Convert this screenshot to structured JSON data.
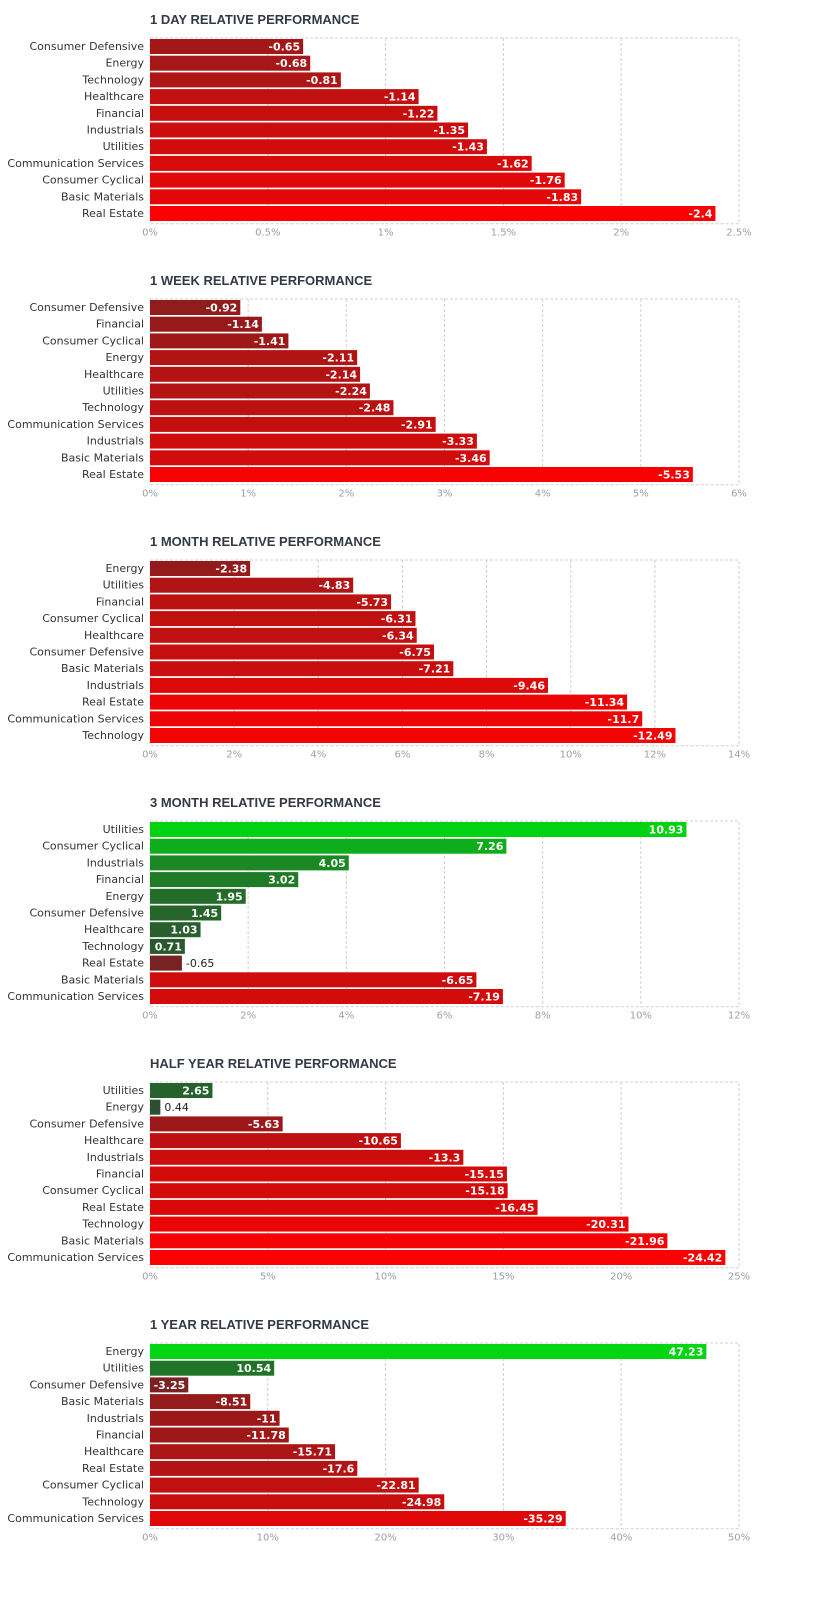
{
  "chart_data": [
    {
      "type": "bar",
      "orientation": "horizontal",
      "title": "1 DAY RELATIVE PERFORMANCE",
      "categories": [
        "Consumer Defensive",
        "Energy",
        "Technology",
        "Healthcare",
        "Financial",
        "Industrials",
        "Utilities",
        "Communication Services",
        "Consumer Cyclical",
        "Basic Materials",
        "Real Estate"
      ],
      "values": [
        -0.65,
        -0.68,
        -0.81,
        -1.14,
        -1.22,
        -1.35,
        -1.43,
        -1.62,
        -1.76,
        -1.83,
        -2.4
      ],
      "value_labels": [
        "-0.65",
        "-0.68",
        "-0.81",
        "-1.14",
        "-1.22",
        "-1.35",
        "-1.43",
        "-1.62",
        "-1.76",
        "-1.83",
        "-2.4"
      ],
      "xlim": [
        0,
        2.5
      ],
      "ticks": [
        0,
        0.5,
        1,
        1.5,
        2,
        2.5
      ],
      "tick_labels": [
        "0%",
        "0.5%",
        "1%",
        "1.5%",
        "2%",
        "2.5%"
      ],
      "grid": true
    },
    {
      "type": "bar",
      "orientation": "horizontal",
      "title": "1 WEEK RELATIVE PERFORMANCE",
      "categories": [
        "Consumer Defensive",
        "Financial",
        "Consumer Cyclical",
        "Energy",
        "Healthcare",
        "Utilities",
        "Technology",
        "Communication Services",
        "Industrials",
        "Basic Materials",
        "Real Estate"
      ],
      "values": [
        -0.92,
        -1.14,
        -1.41,
        -2.11,
        -2.14,
        -2.24,
        -2.48,
        -2.91,
        -3.33,
        -3.46,
        -5.53
      ],
      "value_labels": [
        "-0.92",
        "-1.14",
        "-1.41",
        "-2.11",
        "-2.14",
        "-2.24",
        "-2.48",
        "-2.91",
        "-3.33",
        "-3.46",
        "-5.53"
      ],
      "xlim": [
        0,
        6
      ],
      "ticks": [
        0,
        1,
        2,
        3,
        4,
        5,
        6
      ],
      "tick_labels": [
        "0%",
        "1%",
        "2%",
        "3%",
        "4%",
        "5%",
        "6%"
      ],
      "grid": true
    },
    {
      "type": "bar",
      "orientation": "horizontal",
      "title": "1 MONTH RELATIVE PERFORMANCE",
      "categories": [
        "Energy",
        "Utilities",
        "Financial",
        "Consumer Cyclical",
        "Healthcare",
        "Consumer Defensive",
        "Basic Materials",
        "Industrials",
        "Real Estate",
        "Communication Services",
        "Technology"
      ],
      "values": [
        -2.38,
        -4.83,
        -5.73,
        -6.31,
        -6.34,
        -6.75,
        -7.21,
        -9.46,
        -11.34,
        -11.7,
        -12.49
      ],
      "value_labels": [
        "-2.38",
        "-4.83",
        "-5.73",
        "-6.31",
        "-6.34",
        "-6.75",
        "-7.21",
        "-9.46",
        "-11.34",
        "-11.7",
        "-12.49"
      ],
      "xlim": [
        0,
        14
      ],
      "ticks": [
        0,
        2,
        4,
        6,
        8,
        10,
        12,
        14
      ],
      "tick_labels": [
        "0%",
        "2%",
        "4%",
        "6%",
        "8%",
        "10%",
        "12%",
        "14%"
      ],
      "grid": true
    },
    {
      "type": "bar",
      "orientation": "horizontal",
      "title": "3 MONTH RELATIVE PERFORMANCE",
      "categories": [
        "Utilities",
        "Consumer Cyclical",
        "Industrials",
        "Financial",
        "Energy",
        "Consumer Defensive",
        "Healthcare",
        "Technology",
        "Real Estate",
        "Basic Materials",
        "Communication Services"
      ],
      "values": [
        10.93,
        7.26,
        4.05,
        3.02,
        1.95,
        1.45,
        1.03,
        0.71,
        -0.65,
        -6.65,
        -7.19
      ],
      "value_labels": [
        "10.93",
        "7.26",
        "4.05",
        "3.02",
        "1.95",
        "1.45",
        "1.03",
        "0.71",
        "-0.65",
        "-6.65",
        "-7.19"
      ],
      "xlim": [
        0,
        12
      ],
      "ticks": [
        0,
        2,
        4,
        6,
        8,
        10,
        12
      ],
      "tick_labels": [
        "0%",
        "2%",
        "4%",
        "6%",
        "8%",
        "10%",
        "12%"
      ],
      "grid": true
    },
    {
      "type": "bar",
      "orientation": "horizontal",
      "title": "HALF YEAR RELATIVE PERFORMANCE",
      "categories": [
        "Utilities",
        "Energy",
        "Consumer Defensive",
        "Healthcare",
        "Industrials",
        "Financial",
        "Consumer Cyclical",
        "Real Estate",
        "Technology",
        "Basic Materials",
        "Communication Services"
      ],
      "values": [
        2.65,
        0.44,
        -5.63,
        -10.65,
        -13.3,
        -15.15,
        -15.18,
        -16.45,
        -20.31,
        -21.96,
        -24.42
      ],
      "value_labels": [
        "2.65",
        "0.44",
        "-5.63",
        "-10.65",
        "-13.3",
        "-15.15",
        "-15.18",
        "-16.45",
        "-20.31",
        "-21.96",
        "-24.42"
      ],
      "xlim": [
        0,
        25
      ],
      "ticks": [
        0,
        5,
        10,
        15,
        20,
        25
      ],
      "tick_labels": [
        "0%",
        "5%",
        "10%",
        "15%",
        "20%",
        "25%"
      ],
      "grid": true
    },
    {
      "type": "bar",
      "orientation": "horizontal",
      "title": "1 YEAR RELATIVE PERFORMANCE",
      "categories": [
        "Energy",
        "Utilities",
        "Consumer Defensive",
        "Basic Materials",
        "Industrials",
        "Financial",
        "Healthcare",
        "Real Estate",
        "Consumer Cyclical",
        "Technology",
        "Communication Services"
      ],
      "values": [
        47.23,
        10.54,
        -3.25,
        -8.51,
        -11,
        -11.78,
        -15.71,
        -17.6,
        -22.81,
        -24.98,
        -35.29
      ],
      "value_labels": [
        "47.23",
        "10.54",
        "-3.25",
        "-8.51",
        "-11",
        "-11.78",
        "-15.71",
        "-17.6",
        "-22.81",
        "-24.98",
        "-35.29"
      ],
      "xlim": [
        0,
        50
      ],
      "ticks": [
        0,
        10,
        20,
        30,
        40,
        50
      ],
      "tick_labels": [
        "0%",
        "10%",
        "20%",
        "30%",
        "40%",
        "50%"
      ],
      "grid": true
    }
  ],
  "colors": {
    "negative_strong": "#ff0000",
    "negative_weak": "#5a2a2a",
    "positive_strong": "#00dd11",
    "positive_weak": "#2e4a30",
    "grid": "#d0d0d0",
    "title": "#333a45"
  }
}
